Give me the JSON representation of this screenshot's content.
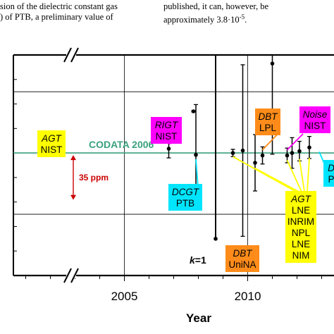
{
  "paper_text": {
    "left_line1": "sion of the dielectric constant gas",
    "left_line2": ") of PTB, a preliminary value of",
    "right_line1": "published,    it    can,    however,    be",
    "right_line2": "approximately 3.8·10",
    "right_line2_sup": "-5",
    "right_line2_end": "."
  },
  "chart_data": {
    "type": "scatter",
    "xlabel": "Year",
    "x_ticks": [
      "2005",
      "2010"
    ],
    "xlim": [
      2000.5,
      2013.5
    ],
    "ylim": [
      -20,
      16
    ],
    "y_tick_values": [
      -10,
      0,
      10
    ],
    "grid": true,
    "reference_line": {
      "label": "CODATA 2006",
      "value": 0,
      "color": "#3aa17e"
    },
    "scale_bar": {
      "label": "35 ppm",
      "from": 0,
      "to": -8,
      "color": "#cc0000"
    },
    "k_label": "k",
    "k_value": "=1",
    "points": [
      {
        "x": 2002.0,
        "y": 0.0,
        "err": 0.5
      },
      {
        "x": 2006.8,
        "y": 0.7,
        "err": 1.5
      },
      {
        "x": 2007.8,
        "y": 6.8,
        "err": 0.1
      },
      {
        "x": 2007.9,
        "y": -0.3,
        "err": 8.2
      },
      {
        "x": 2009.4,
        "y": 0.0,
        "err": 0.6
      },
      {
        "x": 2009.8,
        "y": 0.4,
        "err": 14.0
      },
      {
        "x": 2010.3,
        "y": -1.6,
        "err": 4.6
      },
      {
        "x": 2010.6,
        "y": -0.4,
        "err": 1.4
      },
      {
        "x": 2011.0,
        "y": 14.6,
        "err": 14.8
      },
      {
        "x": 2011.6,
        "y": -0.4,
        "err": 1.2
      },
      {
        "x": 2011.8,
        "y": 0.0,
        "err": 2.5
      },
      {
        "x": 2012.1,
        "y": 0.3,
        "err": 1.6
      },
      {
        "x": 2012.5,
        "y": 0.9,
        "err": 1.8
      }
    ],
    "low_point": {
      "x": 2008.7,
      "y": -14.0
    },
    "colors": {
      "axis": "#000000",
      "grid": "#000000",
      "yellow": "#ffff00",
      "magenta": "#ff00ff",
      "orange": "#ff8c1a",
      "cyan": "#00e5ff"
    },
    "annotations": [
      {
        "lines": [
          "AGT",
          "NIST"
        ],
        "italic_first": true,
        "color": "yellow"
      },
      {
        "lines": [
          "RIGT",
          "NIST"
        ],
        "italic_first": true,
        "color": "magenta"
      },
      {
        "lines": [
          "DBT",
          "LPL"
        ],
        "italic_first": true,
        "color": "orange"
      },
      {
        "lines": [
          "Noise",
          "NIST"
        ],
        "italic_first": true,
        "color": "magenta"
      },
      {
        "lines": [
          "DCGT",
          "PTB"
        ],
        "italic_first": true,
        "color": "cyan"
      },
      {
        "lines": [
          "AGT",
          "LNE",
          "INRIM",
          "NPL",
          "LNE",
          "NIM"
        ],
        "italic_first": true,
        "color": "yellow"
      },
      {
        "lines": [
          "DBT",
          "UniNA"
        ],
        "italic_first": true,
        "color": "orange"
      },
      {
        "lines": [
          "D",
          "P"
        ],
        "italic_first": true,
        "color": "cyan"
      }
    ]
  }
}
